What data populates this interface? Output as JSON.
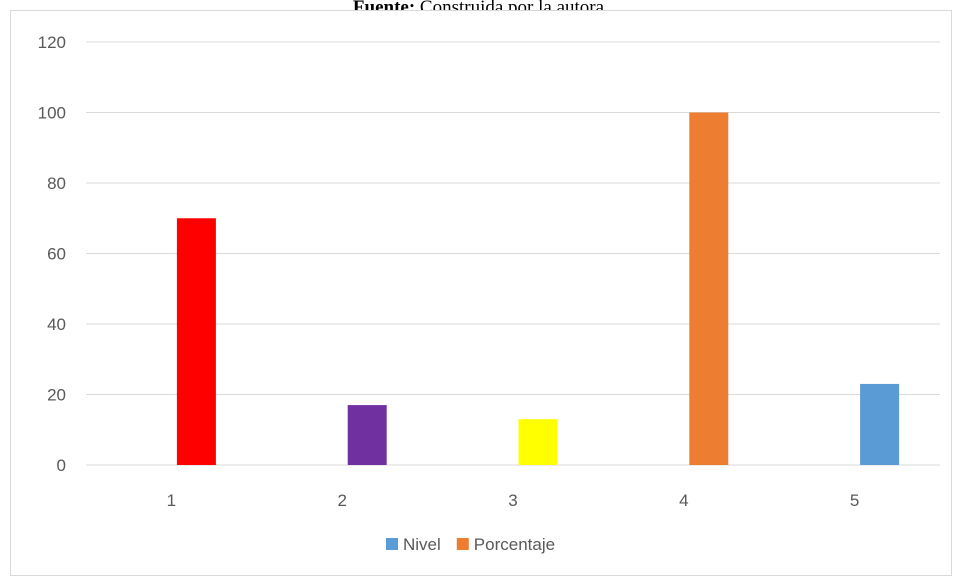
{
  "caption": {
    "label": "Fuente:",
    "text": "Construida por la autora"
  },
  "chart_data": {
    "type": "bar",
    "categories": [
      "1",
      "2",
      "3",
      "4",
      "5"
    ],
    "values": [
      70,
      17,
      13,
      100,
      23
    ],
    "bar_colors": [
      "#ff0000",
      "#7030a0",
      "#ffff00",
      "#ed7d31",
      "#5b9bd5"
    ],
    "yticks": [
      0,
      20,
      40,
      60,
      80,
      100,
      120
    ],
    "ylim": [
      0,
      120
    ],
    "grid": true,
    "legend": {
      "placement": "bottom",
      "entries": [
        {
          "name": "Nivel",
          "color": "#5b9bd5"
        },
        {
          "name": "Porcentaje",
          "color": "#ed7d31"
        }
      ]
    }
  }
}
